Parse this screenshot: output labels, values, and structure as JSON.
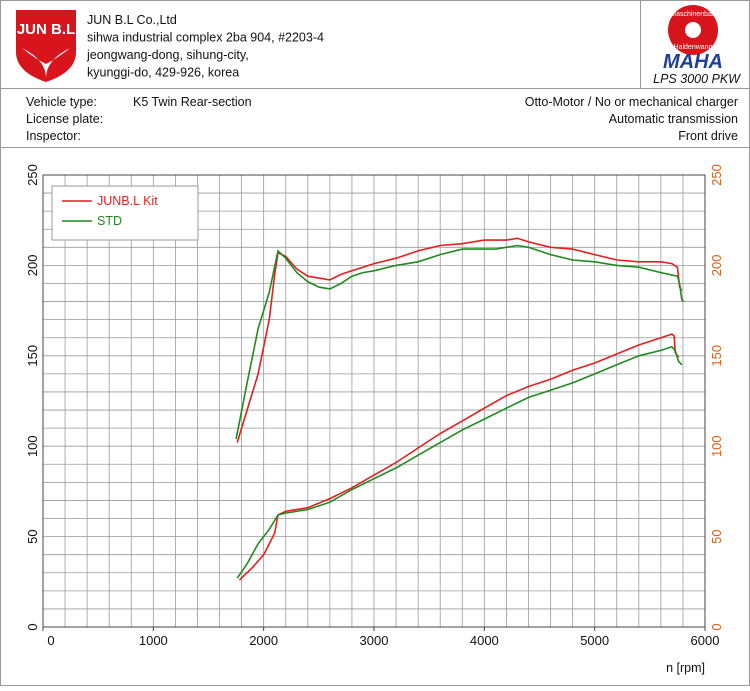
{
  "header": {
    "logo_text": "JUN B.L",
    "company": [
      "JUN B.L Co.,Ltd",
      "sihwa industrial complex 2ba 904, #2203-4",
      "jeongwang-dong, sihung-city,",
      "kyunggi-do, 429-926, korea"
    ],
    "maha_ring": [
      "Maschinenbau",
      "Haldenwang"
    ],
    "maha": "MAHA",
    "model": "LPS 3000 PKW"
  },
  "info": {
    "left": [
      [
        "Vehicle type:",
        "K5 Twin Rear-section"
      ],
      [
        "License plate:"
      ],
      [
        "Inspector:"
      ]
    ],
    "right": [
      "Otto-Motor / No or mechanical charger",
      "Automatic transmission",
      "Front drive"
    ]
  },
  "chart_data": {
    "type": "line",
    "x_label": "n [rpm]",
    "xlim": [
      0,
      6000
    ],
    "xticks": [
      0,
      1000,
      2000,
      3000,
      4000,
      5000,
      6000
    ],
    "xgrid": [
      0,
      200,
      400,
      600,
      800,
      1000,
      1200,
      1400,
      1600,
      1800,
      2000,
      2200,
      2400,
      2600,
      2800,
      3000,
      3200,
      3400,
      3600,
      3800,
      4000,
      4200,
      4400,
      4600,
      4800,
      5000,
      5200,
      5400,
      5600,
      5800,
      6000
    ],
    "ylim": [
      0,
      250
    ],
    "yticks": [
      0,
      50,
      100,
      150,
      200,
      250
    ],
    "ygrid": [
      0,
      10,
      20,
      30,
      40,
      50,
      60,
      70,
      80,
      90,
      100,
      110,
      120,
      130,
      140,
      150,
      160,
      170,
      180,
      190,
      200,
      210,
      220,
      230,
      240,
      250
    ],
    "y2lim": [
      0,
      250
    ],
    "y2ticks": [
      0,
      50,
      100,
      150,
      200,
      250
    ],
    "y2_color": "#e0601a",
    "grid": true,
    "legend": "upper-left",
    "series": [
      {
        "name": "JUNB.L Kit",
        "color": "#e41f1f",
        "curves": [
          {
            "x": [
              1760,
              1850,
              1950,
              2050,
              2100,
              2130,
              2200,
              2300,
              2400,
              2500,
              2600,
              2700,
              2800,
              2900,
              3000,
              3200,
              3400,
              3600,
              3800,
              4000,
              4200,
              4300,
              4400,
              4600,
              4800,
              5000,
              5200,
              5400,
              5600,
              5700,
              5750,
              5770,
              5790
            ],
            "values": [
              102,
              120,
              140,
              170,
              195,
              207,
              205,
              198,
              194,
              193,
              192,
              195,
              197,
              199,
              201,
              204,
              208,
              211,
              212,
              214,
              214,
              215,
              213,
              210,
              209,
              206,
              203,
              202,
              202,
              201,
              199,
              188,
              186
            ]
          },
          {
            "x": [
              1780,
              1900,
              2000,
              2100,
              2130,
              2200,
              2400,
              2600,
              2800,
              3000,
              3200,
              3400,
              3600,
              3800,
              4000,
              4200,
              4400,
              4600,
              4800,
              5000,
              5200,
              5400,
              5600,
              5700,
              5720,
              5730,
              5760
            ],
            "values": [
              26,
              33,
              40,
              52,
              62,
              64,
              66,
              71,
              77,
              84,
              91,
              99,
              107,
              114,
              121,
              128,
              133,
              137,
              142,
              146,
              151,
              156,
              160,
              162,
              161,
              152,
              149
            ]
          }
        ]
      },
      {
        "name": "STD",
        "color": "#1f8a1f",
        "curves": [
          {
            "x": [
              1750,
              1850,
              1950,
              2050,
              2130,
              2200,
              2300,
              2400,
              2500,
              2600,
              2700,
              2800,
              2900,
              3000,
              3200,
              3400,
              3600,
              3800,
              4000,
              4100,
              4200,
              4300,
              4400,
              4600,
              4800,
              5000,
              5200,
              5400,
              5600,
              5750,
              5770,
              5790,
              5810
            ],
            "values": [
              104,
              135,
              165,
              185,
              208,
              204,
              196,
              191,
              188,
              187,
              190,
              194,
              196,
              197,
              200,
              202,
              206,
              209,
              209,
              209,
              210,
              211,
              210,
              206,
              203,
              202,
              200,
              199,
              196,
              194,
              190,
              181,
              180
            ]
          },
          {
            "x": [
              1760,
              1850,
              1950,
              2050,
              2130,
              2200,
              2400,
              2600,
              2800,
              3000,
              3200,
              3400,
              3600,
              3800,
              4000,
              4200,
              4400,
              4600,
              4800,
              5000,
              5200,
              5400,
              5600,
              5700,
              5730,
              5760,
              5790
            ],
            "values": [
              27,
              35,
              46,
              54,
              62,
              63,
              65,
              69,
              76,
              82,
              88,
              95,
              102,
              109,
              115,
              121,
              127,
              131,
              135,
              140,
              145,
              150,
              153,
              155,
              153,
              147,
              145
            ]
          }
        ]
      }
    ]
  }
}
